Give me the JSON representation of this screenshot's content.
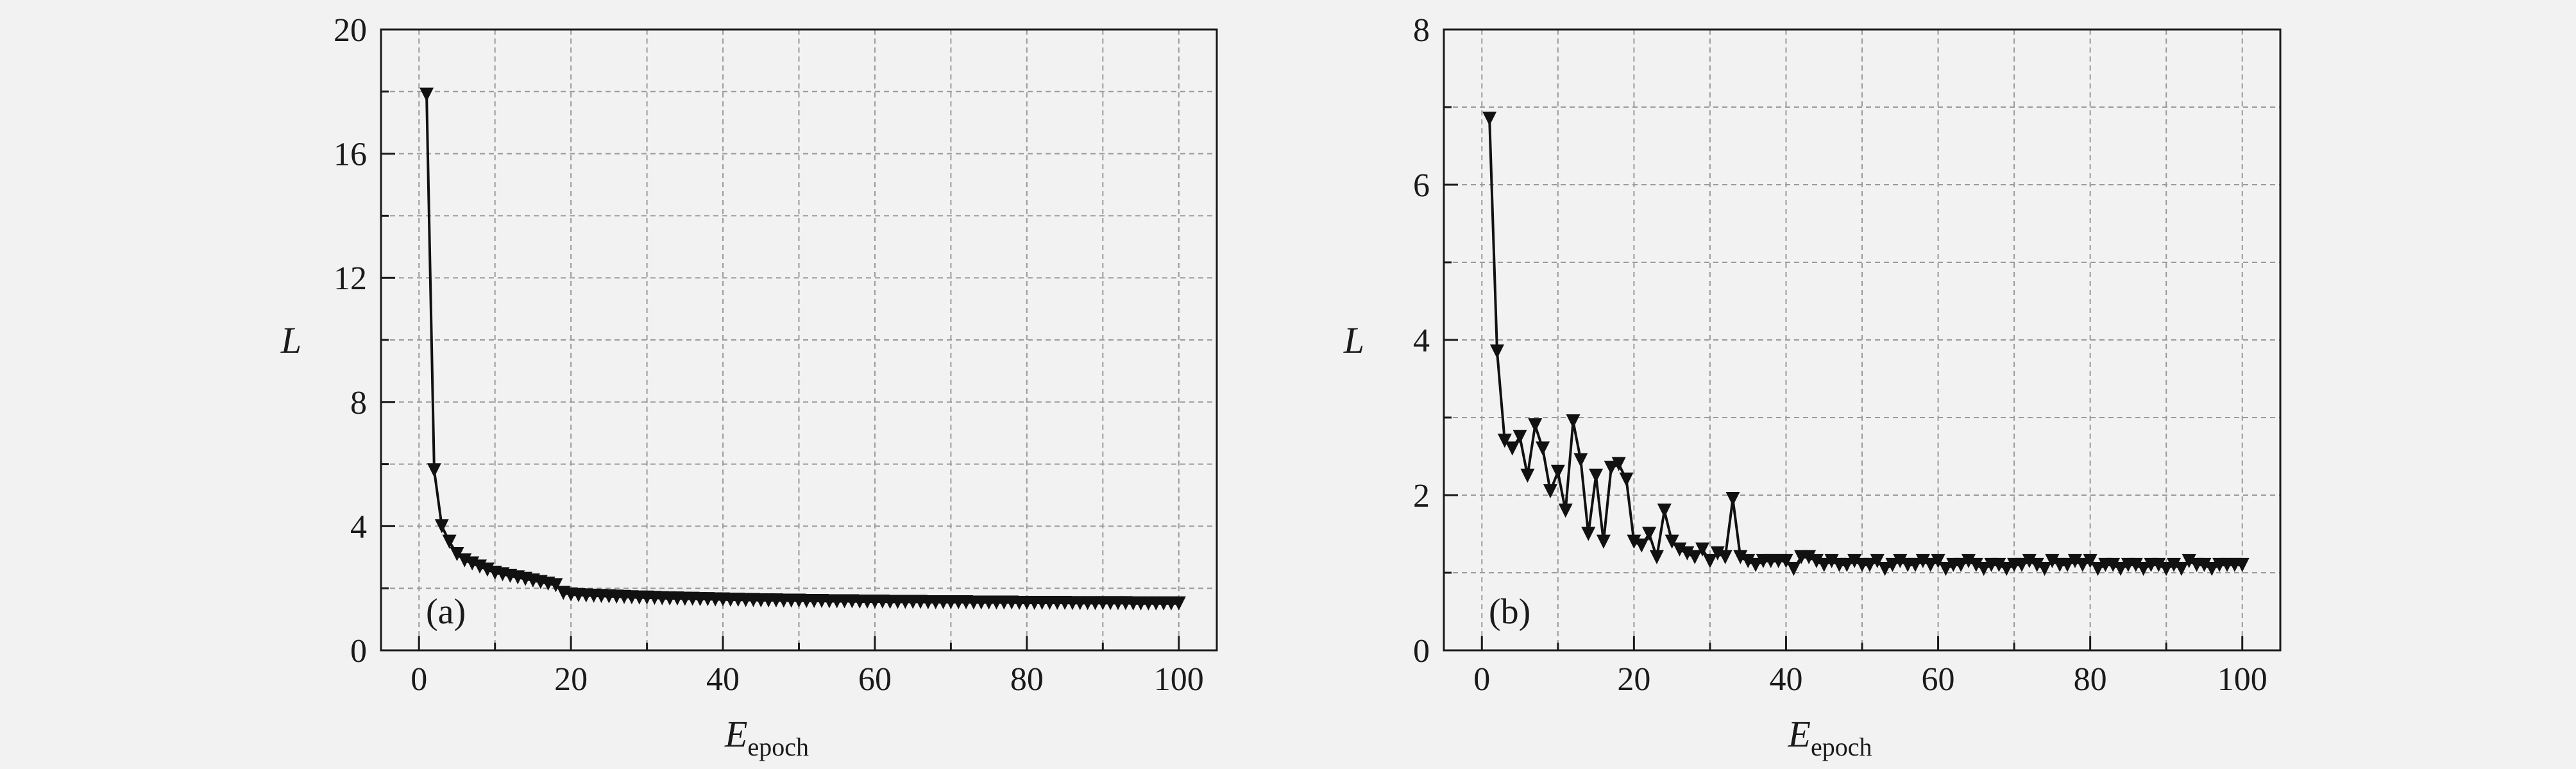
{
  "chart_data": [
    {
      "type": "line",
      "panel_label": "(a)",
      "xlabel": "E",
      "xlabel_subscript": "epoch",
      "ylabel": "L",
      "xlim": [
        -5,
        105
      ],
      "ylim": [
        0,
        20
      ],
      "xticks": [
        0,
        20,
        40,
        60,
        80,
        100
      ],
      "yticks": [
        0,
        4,
        8,
        12,
        16,
        20
      ],
      "grid": true,
      "marker": "down-triangle",
      "line_break_after_x": 18,
      "series": [
        {
          "x": [
            1,
            2,
            3,
            4,
            5,
            6,
            7,
            8,
            9,
            10,
            11,
            12,
            13,
            14,
            15,
            16,
            17,
            18,
            19,
            20,
            21,
            22,
            23,
            24,
            25,
            26,
            27,
            28,
            29,
            30,
            31,
            32,
            33,
            34,
            35,
            36,
            37,
            38,
            39,
            40,
            41,
            42,
            43,
            44,
            45,
            46,
            47,
            48,
            49,
            50,
            51,
            52,
            53,
            54,
            55,
            56,
            57,
            58,
            59,
            60,
            61,
            62,
            63,
            64,
            65,
            66,
            67,
            68,
            69,
            70,
            71,
            72,
            73,
            74,
            75,
            76,
            77,
            78,
            79,
            80,
            81,
            82,
            83,
            84,
            85,
            86,
            87,
            88,
            89,
            90,
            91,
            92,
            93,
            94,
            95,
            96,
            97,
            98,
            99,
            100
          ],
          "y": [
            17.9,
            5.8,
            4.0,
            3.5,
            3.1,
            2.9,
            2.8,
            2.7,
            2.6,
            2.5,
            2.45,
            2.4,
            2.35,
            2.3,
            2.25,
            2.2,
            2.15,
            2.1,
            1.85,
            1.8,
            1.78,
            1.77,
            1.76,
            1.75,
            1.74,
            1.73,
            1.72,
            1.71,
            1.7,
            1.7,
            1.69,
            1.68,
            1.67,
            1.67,
            1.66,
            1.66,
            1.65,
            1.65,
            1.64,
            1.64,
            1.63,
            1.63,
            1.62,
            1.62,
            1.61,
            1.61,
            1.61,
            1.6,
            1.6,
            1.6,
            1.59,
            1.59,
            1.59,
            1.58,
            1.58,
            1.58,
            1.58,
            1.57,
            1.57,
            1.57,
            1.57,
            1.56,
            1.56,
            1.56,
            1.56,
            1.56,
            1.55,
            1.55,
            1.55,
            1.55,
            1.55,
            1.55,
            1.54,
            1.54,
            1.54,
            1.54,
            1.54,
            1.54,
            1.53,
            1.53,
            1.53,
            1.53,
            1.53,
            1.53,
            1.53,
            1.52,
            1.52,
            1.52,
            1.52,
            1.52,
            1.52,
            1.52,
            1.52,
            1.51,
            1.51,
            1.51,
            1.51,
            1.51,
            1.51,
            1.51
          ]
        }
      ]
    },
    {
      "type": "line",
      "panel_label": "(b)",
      "xlabel": "E",
      "xlabel_subscript": "epoch",
      "ylabel": "L",
      "xlim": [
        -5,
        105
      ],
      "ylim": [
        0,
        8
      ],
      "xticks": [
        0,
        20,
        40,
        60,
        80,
        100
      ],
      "yticks": [
        0,
        2,
        4,
        6,
        8
      ],
      "grid": true,
      "marker": "down-triangle",
      "series": [
        {
          "x": [
            1,
            2,
            3,
            4,
            5,
            6,
            7,
            8,
            9,
            10,
            11,
            12,
            13,
            14,
            15,
            16,
            17,
            18,
            19,
            20,
            21,
            22,
            23,
            24,
            25,
            26,
            27,
            28,
            29,
            30,
            31,
            32,
            33,
            34,
            35,
            36,
            37,
            38,
            39,
            40,
            41,
            42,
            43,
            44,
            45,
            46,
            47,
            48,
            49,
            50,
            51,
            52,
            53,
            54,
            55,
            56,
            57,
            58,
            59,
            60,
            61,
            62,
            63,
            64,
            65,
            66,
            67,
            68,
            69,
            70,
            71,
            72,
            73,
            74,
            75,
            76,
            77,
            78,
            79,
            80,
            81,
            82,
            83,
            84,
            85,
            86,
            87,
            88,
            89,
            90,
            91,
            92,
            93,
            94,
            95,
            96,
            97,
            98,
            99,
            100
          ],
          "y": [
            6.85,
            3.85,
            2.7,
            2.6,
            2.75,
            2.25,
            2.9,
            2.6,
            2.05,
            2.3,
            1.8,
            2.95,
            2.45,
            1.5,
            2.25,
            1.4,
            2.35,
            2.4,
            2.2,
            1.4,
            1.35,
            1.5,
            1.2,
            1.8,
            1.4,
            1.3,
            1.25,
            1.2,
            1.3,
            1.15,
            1.25,
            1.2,
            1.95,
            1.2,
            1.15,
            1.1,
            1.15,
            1.15,
            1.15,
            1.15,
            1.05,
            1.2,
            1.2,
            1.15,
            1.1,
            1.15,
            1.1,
            1.1,
            1.15,
            1.1,
            1.1,
            1.15,
            1.05,
            1.1,
            1.15,
            1.1,
            1.1,
            1.15,
            1.1,
            1.15,
            1.05,
            1.1,
            1.1,
            1.15,
            1.1,
            1.05,
            1.1,
            1.1,
            1.05,
            1.1,
            1.1,
            1.15,
            1.1,
            1.05,
            1.15,
            1.1,
            1.1,
            1.15,
            1.1,
            1.15,
            1.05,
            1.1,
            1.1,
            1.05,
            1.1,
            1.1,
            1.05,
            1.1,
            1.1,
            1.05,
            1.1,
            1.05,
            1.15,
            1.1,
            1.1,
            1.05,
            1.1,
            1.1,
            1.1,
            1.1
          ]
        }
      ]
    }
  ]
}
